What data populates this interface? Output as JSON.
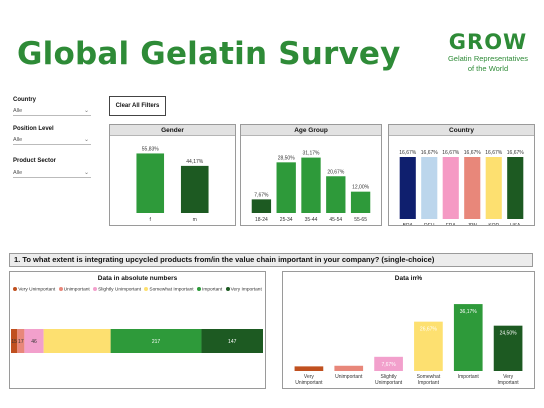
{
  "header": {
    "title": "Global Gelatin Survey",
    "logo_word": "GROW",
    "logo_line1": "Gelatin Representatives",
    "logo_line2": "of the World"
  },
  "filters": [
    {
      "label": "Country",
      "value": "Alle"
    },
    {
      "label": "Position Level",
      "value": "Alle"
    },
    {
      "label": "Product Sector",
      "value": "Alle"
    }
  ],
  "clear_button": "Clear All Filters",
  "panels": {
    "gender_title": "Gender",
    "age_title": "Age Group",
    "country_title": "Country"
  },
  "question": "1. To what extent is integrating upcycled products from/in the value chain important in your company? (single-choice)",
  "absolute_title": "Data in absolute numbers",
  "percent_title": "Data in%",
  "legend": [
    {
      "label": "Very Unimportant",
      "color": "#c0501f"
    },
    {
      "label": "Unimportant",
      "color": "#e8877a"
    },
    {
      "label": "Slightly Unimportant",
      "color": "#f2a0cc"
    },
    {
      "label": "Somewhat Important",
      "color": "#fde070"
    },
    {
      "label": "Important",
      "color": "#2e9a3a"
    },
    {
      "label": "Very Important",
      "color": "#1d5a22"
    }
  ],
  "chart_data": [
    {
      "type": "bar",
      "title": "Gender",
      "categories": [
        "f",
        "m"
      ],
      "values": [
        55.83,
        44.17
      ],
      "labels": [
        "55,83%",
        "44,17%"
      ],
      "colors": [
        "#2e9a3a",
        "#1d5a22"
      ]
    },
    {
      "type": "bar",
      "title": "Age Group",
      "categories": [
        "18-24",
        "25-34",
        "35-44",
        "45-54",
        "55-65"
      ],
      "values": [
        7.67,
        28.5,
        31.17,
        20.67,
        12.0
      ],
      "labels": [
        "7,67%",
        "28,50%",
        "31,17%",
        "20,67%",
        "12,00%"
      ],
      "colors": [
        "#1d5a22",
        "#2e9a3a",
        "#2e9a3a",
        "#2e9a3a",
        "#2e9a3a"
      ]
    },
    {
      "type": "bar",
      "title": "Country",
      "categories": [
        "BRA",
        "DEU",
        "FRA",
        "JPN",
        "KOR",
        "USA"
      ],
      "values": [
        16.67,
        16.67,
        16.67,
        16.67,
        16.67,
        16.67
      ],
      "labels": [
        "16,67%",
        "16,67%",
        "16,67%",
        "16,67%",
        "16,67%",
        "16,67%"
      ],
      "colors": [
        "#0f1f6e",
        "#bcd6ec",
        "#f59ac4",
        "#e8877a",
        "#fde070",
        "#1d5a22"
      ]
    },
    {
      "type": "bar",
      "title": "Data in absolute numbers",
      "stacked": true,
      "orientation": "horizontal",
      "categories": [
        "Very Unimportant",
        "Unimportant",
        "Slightly Unimportant",
        "Somewhat Important",
        "Important",
        "Very Important"
      ],
      "values": [
        15,
        17,
        46,
        160,
        217,
        147
      ],
      "labels": [
        "15",
        "17",
        "46",
        "",
        "217",
        "147"
      ]
    },
    {
      "type": "bar",
      "title": "Data in%",
      "categories": [
        "Very Unimportant",
        "Unimportant",
        "Slightly Unimportant",
        "Somewhat Important",
        "Important",
        "Very Important"
      ],
      "values": [
        2.5,
        2.83,
        7.67,
        26.67,
        36.17,
        24.5
      ],
      "labels": [
        "2,50%",
        "2,83%",
        "7,67%",
        "26,67%",
        "36,17%",
        "24,50%"
      ]
    }
  ]
}
